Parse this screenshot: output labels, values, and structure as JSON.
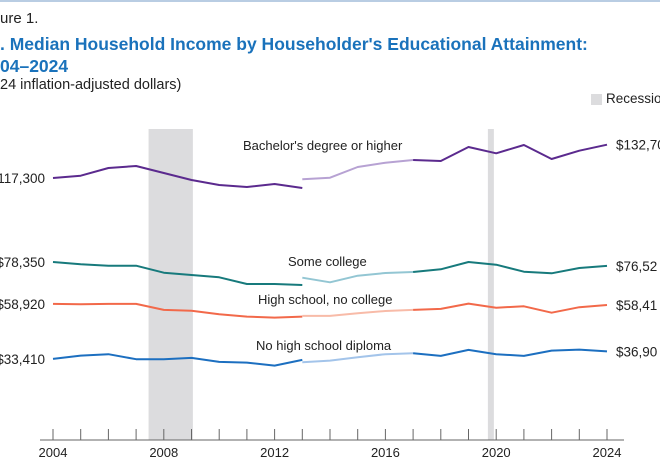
{
  "header": {
    "figure_label": "ure 1.",
    "title_line1": ". Median Household Income by Householder's Educational Attainment:",
    "title_line2": "04–2024",
    "subtitle": "24 inflation-adjusted dollars)"
  },
  "legend": {
    "recession_label": "Recessio",
    "recession_color": "#dcdcde"
  },
  "chart_data": {
    "type": "line",
    "title": ". Median Household Income by Householder's Educational Attainment: 04–2024",
    "xlim": [
      2004,
      2024
    ],
    "ylim": [
      0,
      140000
    ],
    "x_ticks": [
      2004,
      2008,
      2012,
      2016,
      2020,
      2024
    ],
    "recessions": [
      [
        2007.45,
        2009.05
      ],
      [
        2019.7,
        2019.9
      ]
    ],
    "grid": false,
    "series": [
      {
        "name": "Bachelor's degree or higher",
        "color": "#5b2a8e",
        "light_color": "#b7a2d3",
        "start_label": "117,300",
        "end_label": "$132,70",
        "x_old": [
          2004,
          2005,
          2006,
          2007,
          2008,
          2009,
          2010,
          2011,
          2012,
          2013
        ],
        "old": [
          117300,
          118370,
          121930,
          122860,
          119620,
          116370,
          114060,
          113130,
          114520,
          112670
        ],
        "x_new": [
          2013,
          2014,
          2015,
          2016,
          2017,
          2018,
          2019,
          2020,
          2021,
          2022,
          2023,
          2024
        ],
        "new": [
          116700,
          117440,
          122400,
          124390,
          125640,
          125180,
          131660,
          128750,
          132590,
          126100,
          129950,
          132700
        ]
      },
      {
        "name": "Some college",
        "color": "#177a7c",
        "light_color": "#93c6d3",
        "start_label": "$78,350",
        "end_label": "$76,52",
        "x_old": [
          2004,
          2005,
          2006,
          2007,
          2008,
          2009,
          2010,
          2011,
          2012,
          2013
        ],
        "old": [
          78350,
          77290,
          76640,
          76640,
          73400,
          72330,
          71270,
          68160,
          68160,
          67700
        ],
        "x_new": [
          2013,
          2014,
          2015,
          2016,
          2017,
          2018,
          2019,
          2020,
          2021,
          2022,
          2023,
          2024
        ],
        "new": [
          71080,
          68950,
          72010,
          73260,
          73720,
          74980,
          78360,
          77110,
          73860,
          73120,
          75580,
          76520
        ]
      },
      {
        "name": "High school, no college",
        "color": "#f2694a",
        "light_color": "#f8bba8",
        "start_label": "$58,920",
        "end_label": "$58,41",
        "x_old": [
          2004,
          2005,
          2006,
          2007,
          2008,
          2009,
          2010,
          2011,
          2012,
          2013
        ],
        "old": [
          58920,
          58760,
          58900,
          58900,
          56120,
          55790,
          54120,
          53010,
          52550,
          53010
        ],
        "x_new": [
          2013,
          2014,
          2015,
          2016,
          2017,
          2018,
          2019,
          2020,
          2021,
          2022,
          2023,
          2024
        ],
        "new": [
          53340,
          53340,
          54590,
          55650,
          56120,
          56580,
          59040,
          57180,
          57830,
          54860,
          57370,
          58410
        ]
      },
      {
        "name": "No high school diploma",
        "color": "#1c6fc0",
        "light_color": "#a3c4ea",
        "start_label": "$33,410",
        "end_label": "$36,90",
        "x_old": [
          2004,
          2005,
          2006,
          2007,
          2008,
          2009,
          2010,
          2011,
          2012,
          2013
        ],
        "old": [
          33410,
          34940,
          35590,
          33270,
          33270,
          33870,
          32020,
          31700,
          30310,
          32950
        ],
        "x_new": [
          2013,
          2014,
          2015,
          2016,
          2017,
          2018,
          2019,
          2020,
          2021,
          2022,
          2023,
          2024
        ],
        "new": [
          31880,
          32620,
          34200,
          35590,
          36050,
          34800,
          37580,
          35590,
          34800,
          37260,
          37720,
          36900
        ]
      }
    ],
    "light_segment_end": 2017
  }
}
